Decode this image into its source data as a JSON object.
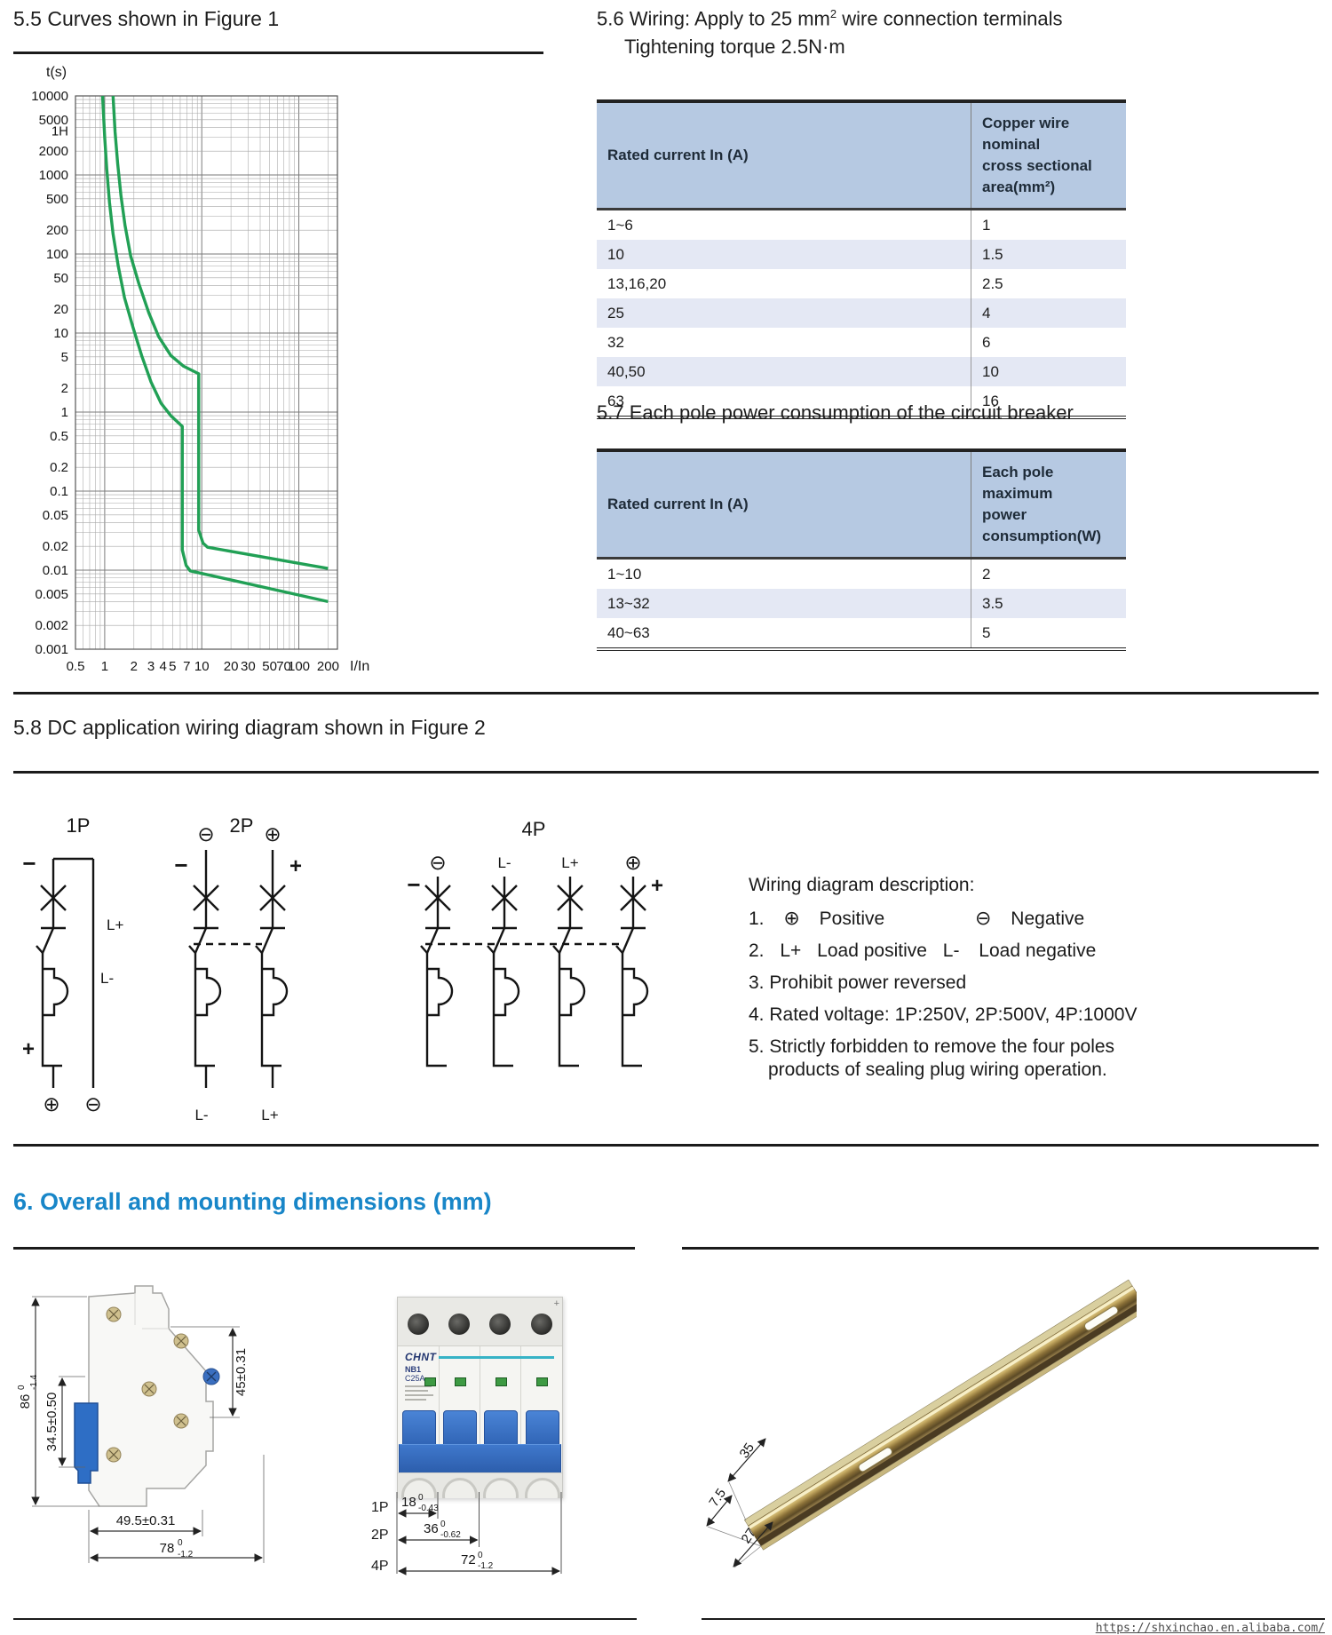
{
  "page_titles": {
    "s55": "5.5 Curves shown in Figure 1",
    "s56_a": "5.6 Wiring: Apply to 25 mm",
    "s56_sup": "2",
    "s56_b": " wire connection terminals",
    "s56_line2": "Tightening torque 2.5N·m",
    "s57": "5.7 Each pole power consumption of the circuit breaker",
    "s58": "5.8 DC application wiring diagram shown in Figure 2",
    "s6": "6. Overall and mounting dimensions (mm)"
  },
  "chart_data": {
    "type": "line",
    "scale": "log-log",
    "grid": true,
    "xlabel": "I/In",
    "ylabel": "t(s)",
    "xlim": [
      0.5,
      250
    ],
    "ylim": [
      0.001,
      10000
    ],
    "line_color": "#21a055",
    "x_ticks": [
      {
        "label": "0.5",
        "v": 0.5
      },
      {
        "label": "1",
        "v": 1
      },
      {
        "label": "2",
        "v": 2
      },
      {
        "label": "3",
        "v": 3
      },
      {
        "label": "4",
        "v": 4
      },
      {
        "label": "5",
        "v": 5
      },
      {
        "label": "7",
        "v": 7
      },
      {
        "label": "10",
        "v": 10
      },
      {
        "label": "20",
        "v": 20
      },
      {
        "label": "30",
        "v": 30
      },
      {
        "label": "50",
        "v": 50
      },
      {
        "label": "70",
        "v": 70
      },
      {
        "label": "100",
        "v": 100
      },
      {
        "label": "200",
        "v": 200
      }
    ],
    "y_ticks": [
      {
        "label": "10000",
        "v": 10000
      },
      {
        "label": "5000",
        "v": 5000
      },
      {
        "label": "1H",
        "v": 3600
      },
      {
        "label": "2000",
        "v": 2000
      },
      {
        "label": "1000",
        "v": 1000
      },
      {
        "label": "500",
        "v": 500
      },
      {
        "label": "200",
        "v": 200
      },
      {
        "label": "100",
        "v": 100
      },
      {
        "label": "50",
        "v": 50
      },
      {
        "label": "20",
        "v": 20
      },
      {
        "label": "10",
        "v": 10
      },
      {
        "label": "5",
        "v": 5
      },
      {
        "label": "2",
        "v": 2
      },
      {
        "label": "1",
        "v": 1
      },
      {
        "label": "0.5",
        "v": 0.5
      },
      {
        "label": "0.2",
        "v": 0.2
      },
      {
        "label": "0.1",
        "v": 0.1
      },
      {
        "label": "0.05",
        "v": 0.05
      },
      {
        "label": "0.02",
        "v": 0.02
      },
      {
        "label": "0.01",
        "v": 0.01
      },
      {
        "label": "0.005",
        "v": 0.005
      },
      {
        "label": "0.002",
        "v": 0.002
      },
      {
        "label": "0.001",
        "v": 0.001
      }
    ],
    "series": [
      {
        "name": "lower boundary",
        "points": [
          [
            0.95,
            10000
          ],
          [
            1.0,
            3000
          ],
          [
            1.05,
            1200
          ],
          [
            1.12,
            450
          ],
          [
            1.22,
            180
          ],
          [
            1.38,
            70
          ],
          [
            1.6,
            28
          ],
          [
            1.95,
            12
          ],
          [
            2.4,
            5.2
          ],
          [
            3.0,
            2.4
          ],
          [
            3.8,
            1.3
          ],
          [
            4.8,
            0.9
          ],
          [
            6.3,
            0.66
          ],
          [
            6.3,
            0.018
          ],
          [
            6.9,
            0.0115
          ],
          [
            7.6,
            0.0098
          ],
          [
            200,
            0.004
          ]
        ]
      },
      {
        "name": "upper boundary",
        "points": [
          [
            1.22,
            10000
          ],
          [
            1.28,
            3500
          ],
          [
            1.36,
            1400
          ],
          [
            1.47,
            550
          ],
          [
            1.62,
            230
          ],
          [
            1.85,
            95
          ],
          [
            2.25,
            42
          ],
          [
            2.85,
            18
          ],
          [
            3.6,
            9
          ],
          [
            4.8,
            5.2
          ],
          [
            6.5,
            3.8
          ],
          [
            9.3,
            3.05
          ],
          [
            9.3,
            0.032
          ],
          [
            10.3,
            0.022
          ],
          [
            11.5,
            0.0195
          ],
          [
            200,
            0.0105
          ]
        ]
      }
    ]
  },
  "wiring_table": {
    "header_col1": "Rated current In (A)",
    "header_col2_line1": "Copper wire nominal",
    "header_col2_line2": "cross sectional area(mm²)",
    "rows": [
      [
        "1~6",
        "1"
      ],
      [
        "10",
        "1.5"
      ],
      [
        "13,16,20",
        "2.5"
      ],
      [
        "25",
        "4"
      ],
      [
        "32",
        "6"
      ],
      [
        "40,50",
        "10"
      ],
      [
        "63",
        "16"
      ]
    ]
  },
  "power_table": {
    "header_col1": "Rated current In (A)",
    "header_col2_line1": "Each pole maximum",
    "header_col2_line2": "power consumption(W)",
    "rows": [
      [
        "1~10",
        "2"
      ],
      [
        "13~32",
        "3.5"
      ],
      [
        "40~63",
        "5"
      ]
    ]
  },
  "figure2": {
    "p1": {
      "title": "1P",
      "minus": "−",
      "plus": "+",
      "load_pos": "L+",
      "load_neg": "L-",
      "pos": "⊕",
      "neg": "⊖"
    },
    "p2": {
      "title": "2P",
      "minus": "−",
      "plus": "+",
      "pos": "⊕",
      "neg": "⊖",
      "bottom_neg": "L-",
      "bottom_pos": "L+"
    },
    "p4": {
      "title": "4P",
      "minus": "−",
      "plus": "+",
      "top_labels": [
        "⊖",
        "L-",
        "L+",
        "⊕"
      ]
    }
  },
  "wiring_desc": {
    "title": "Wiring diagram description:",
    "i1_num": "1.",
    "i1_pos_sym": "⊕",
    "i1_pos": "Positive",
    "i1_neg_sym": "⊖",
    "i1_neg": "Negative",
    "i2_num": "2.",
    "i2_a": "L+",
    "i2_b": "Load positive",
    "i2_c": "L-",
    "i2_d": "Load negative",
    "i3": "3. Prohibit power reversed",
    "i4": "4. Rated voltage: 1P:250V, 2P:500V, 4P:1000V",
    "i5_line1": "5. Strictly forbidden to remove the four  poles",
    "i5_line2": "products of sealing plug wiring operation."
  },
  "dimensions": {
    "side": {
      "height_main": "86",
      "height_sup": "0",
      "height_sub": "-1.4",
      "mid": "34.5±0.50",
      "right": "45±0.31",
      "w1": "49.5±0.31",
      "w2_main": "78",
      "w2_sup": "0",
      "w2_sub": "-1.2"
    },
    "front": {
      "brand": "CHNT",
      "model": "NB1",
      "rating": "C25A",
      "corner_plus": "+",
      "p1": {
        "label": "1P",
        "main": "18",
        "sup": "0",
        "sub": "-0.43"
      },
      "p2": {
        "label": "2P",
        "main": "36",
        "sup": "0",
        "sub": "-0.62"
      },
      "p4": {
        "label": "4P",
        "main": "72",
        "sup": "0",
        "sub": "-1.2"
      }
    },
    "rail": {
      "d35": "35",
      "d75": "7.5",
      "d27": "27"
    }
  },
  "footer": {
    "url": "https://shxinchao.en.alibaba.com/"
  }
}
